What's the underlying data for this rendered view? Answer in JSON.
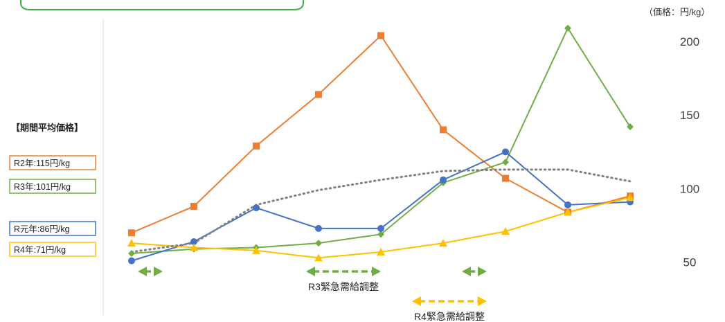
{
  "chart_data": {
    "type": "line",
    "title": "",
    "unit_label": "（価格：円/kg）",
    "x": [
      1,
      2,
      3,
      4,
      5,
      6,
      7,
      8,
      9
    ],
    "ylim": [
      40,
      215
    ],
    "yticks": [
      50,
      100,
      150,
      200
    ],
    "y_axis_side": "right",
    "grid": false,
    "series": [
      {
        "name": "R2年:115円/kg",
        "color": "#ED7D31",
        "marker": "square",
        "values": [
          70,
          88,
          129,
          164,
          204,
          140,
          107,
          84,
          95
        ]
      },
      {
        "name": "R3年:101円/kg",
        "color": "#70AD47",
        "marker": "diamond",
        "values": [
          56,
          59,
          60,
          63,
          69,
          104,
          118,
          209,
          142
        ]
      },
      {
        "name": "R元年:86円/kg",
        "color": "#4472C4",
        "marker": "circle",
        "values": [
          51,
          64,
          87,
          73,
          73,
          106,
          125,
          89,
          91
        ]
      },
      {
        "name": "R4年:71円/kg",
        "color": "#FFC000",
        "marker": "triangle",
        "values": [
          63,
          60,
          58,
          53,
          57,
          63,
          71,
          84,
          94
        ]
      },
      {
        "name": "",
        "color": "#808080",
        "marker": "none",
        "dotted": true,
        "values": [
          57,
          63,
          89,
          99,
          106,
          112,
          113,
          113,
          105
        ]
      }
    ],
    "legend_title": "【期間平均価格】",
    "annotations": [
      {
        "label": "",
        "color": "#70AD47",
        "from": 1.1,
        "to": 1.5
      },
      {
        "label": "R3緊急需給調整",
        "color": "#70AD47",
        "from": 3.8,
        "to": 5.0
      },
      {
        "label": "",
        "color": "#70AD47",
        "from": 6.3,
        "to": 6.7
      },
      {
        "label": "R4緊急需給調整",
        "color": "#FFC000",
        "from": 5.5,
        "to": 6.7
      }
    ]
  }
}
